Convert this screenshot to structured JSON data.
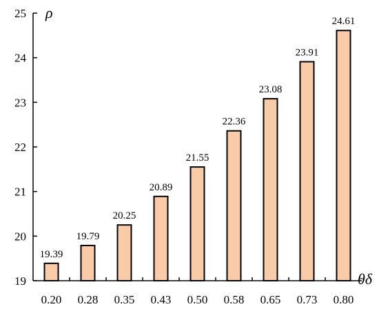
{
  "chart_data": {
    "type": "bar",
    "categories": [
      "0.20",
      "0.28",
      "0.35",
      "0.43",
      "0.50",
      "0.58",
      "0.65",
      "0.73",
      "0.80"
    ],
    "values": [
      19.39,
      19.79,
      20.25,
      20.89,
      21.55,
      22.36,
      23.08,
      23.91,
      24.61
    ],
    "value_labels": [
      "19.39",
      "19.79",
      "20.25",
      "20.89",
      "21.55",
      "22.36",
      "23.08",
      "23.91",
      "24.61"
    ],
    "xlabel": "θδ",
    "ylabel": "ρ",
    "ylim": [
      19,
      25
    ],
    "yticks": [
      19,
      20,
      21,
      22,
      23,
      24,
      25
    ],
    "grid": false,
    "bar_color": "#f9cba8",
    "bar_edge_color": "#000000"
  }
}
